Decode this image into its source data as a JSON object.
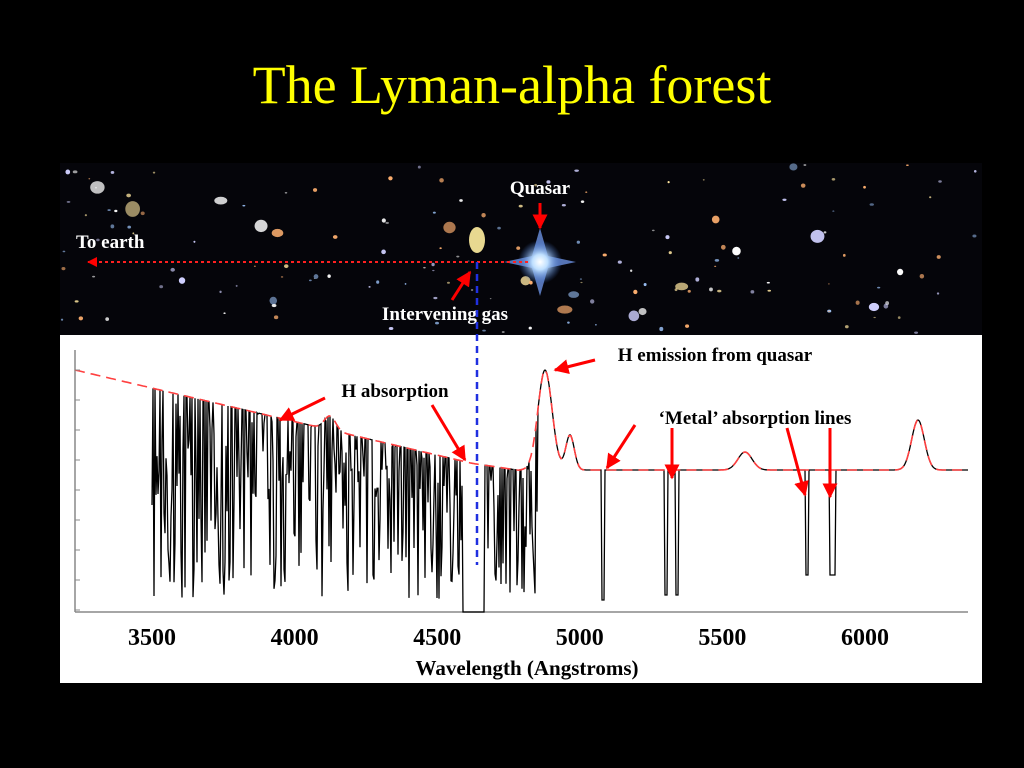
{
  "title": "The Lyman-alpha forest",
  "image_labels": {
    "quasar": "Quasar",
    "to_earth": "To earth",
    "intervening_gas": "Intervening gas"
  },
  "spectrum": {
    "annotations": {
      "h_absorption": "H absorption",
      "h_emission": "H emission from quasar",
      "metal_lines": "‘Metal’ absorption lines"
    },
    "x_axis_label": "Wavelength (Angstroms)",
    "x_tick_labels": [
      "3500",
      "4000",
      "4500",
      "5000",
      "5500",
      "6000"
    ]
  }
}
